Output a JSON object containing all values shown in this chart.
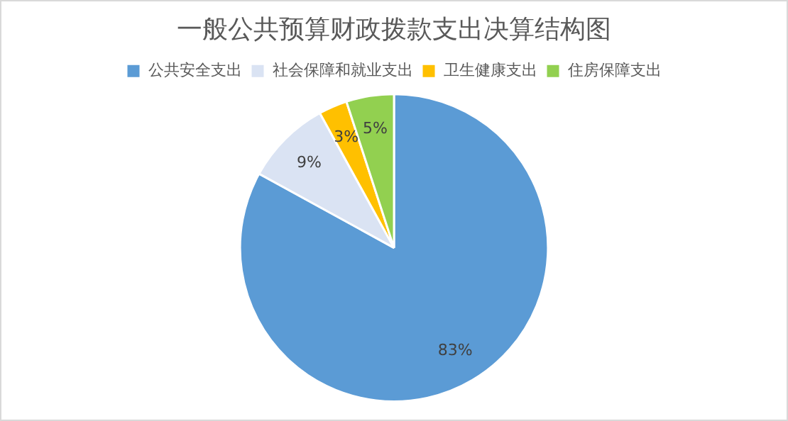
{
  "chart_data": {
    "type": "pie",
    "title": "一般公共预算财政拨款支出决算结构图",
    "categories": [
      "公共安全支出",
      "社会保障和就业支出",
      "卫生健康支出",
      "住房保障支出"
    ],
    "values": [
      83,
      9,
      3,
      5
    ],
    "colors": [
      "#5b9bd5",
      "#dae3f3",
      "#ffc000",
      "#92d050"
    ],
    "value_labels": [
      "83%",
      "9%",
      "3%",
      "5%"
    ],
    "legend": "top"
  }
}
